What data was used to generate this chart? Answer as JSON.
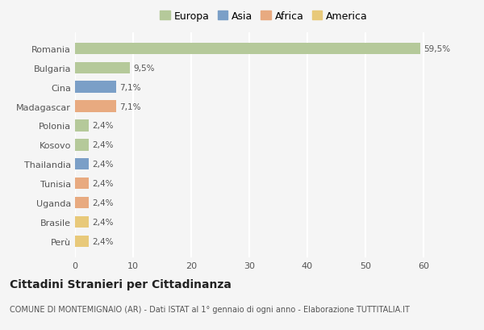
{
  "categories": [
    "Romania",
    "Bulgaria",
    "Cina",
    "Madagascar",
    "Polonia",
    "Kosovo",
    "Thailandia",
    "Tunisia",
    "Uganda",
    "Brasile",
    "Perù"
  ],
  "values": [
    59.5,
    9.5,
    7.1,
    7.1,
    2.4,
    2.4,
    2.4,
    2.4,
    2.4,
    2.4,
    2.4
  ],
  "labels": [
    "59,5%",
    "9,5%",
    "7,1%",
    "7,1%",
    "2,4%",
    "2,4%",
    "2,4%",
    "2,4%",
    "2,4%",
    "2,4%",
    "2,4%"
  ],
  "colors": [
    "#b5c99a",
    "#b5c99a",
    "#7b9fc7",
    "#e8aa80",
    "#b5c99a",
    "#b5c99a",
    "#7b9fc7",
    "#e8aa80",
    "#e8aa80",
    "#e8c97a",
    "#e8c97a"
  ],
  "legend_labels": [
    "Europa",
    "Asia",
    "Africa",
    "America"
  ],
  "legend_colors": [
    "#b5c99a",
    "#7b9fc7",
    "#e8aa80",
    "#e8c97a"
  ],
  "xlim": [
    0,
    65
  ],
  "xticks": [
    0,
    10,
    20,
    30,
    40,
    50,
    60
  ],
  "background_color": "#f5f5f5",
  "grid_color": "#ffffff",
  "title": "Cittadini Stranieri per Cittadinanza",
  "subtitle": "COMUNE DI MONTEMIGNAIO (AR) - Dati ISTAT al 1° gennaio di ogni anno - Elaborazione TUTTITALIA.IT",
  "bar_height": 0.6,
  "title_fontsize": 10,
  "subtitle_fontsize": 7,
  "label_fontsize": 7.5,
  "tick_fontsize": 8,
  "legend_fontsize": 9
}
